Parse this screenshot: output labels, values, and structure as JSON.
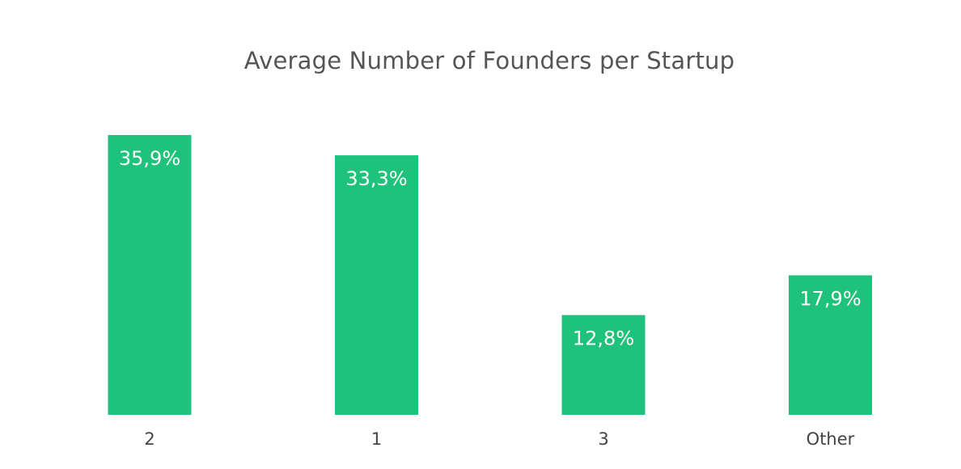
{
  "chart_data": {
    "type": "bar",
    "title": "Average Number of Founders per Startup",
    "xlabel": "",
    "ylabel": "",
    "categories": [
      "2",
      "1",
      "3",
      "Other"
    ],
    "values": [
      35.9,
      33.3,
      12.8,
      17.9
    ],
    "value_labels": [
      "35,9%",
      "33,3%",
      "12,8%",
      "17,9%"
    ],
    "unit": "%",
    "ylim": [
      0,
      35.9
    ],
    "grid": false,
    "legend": "none",
    "bar_color": "#1fc27a"
  }
}
